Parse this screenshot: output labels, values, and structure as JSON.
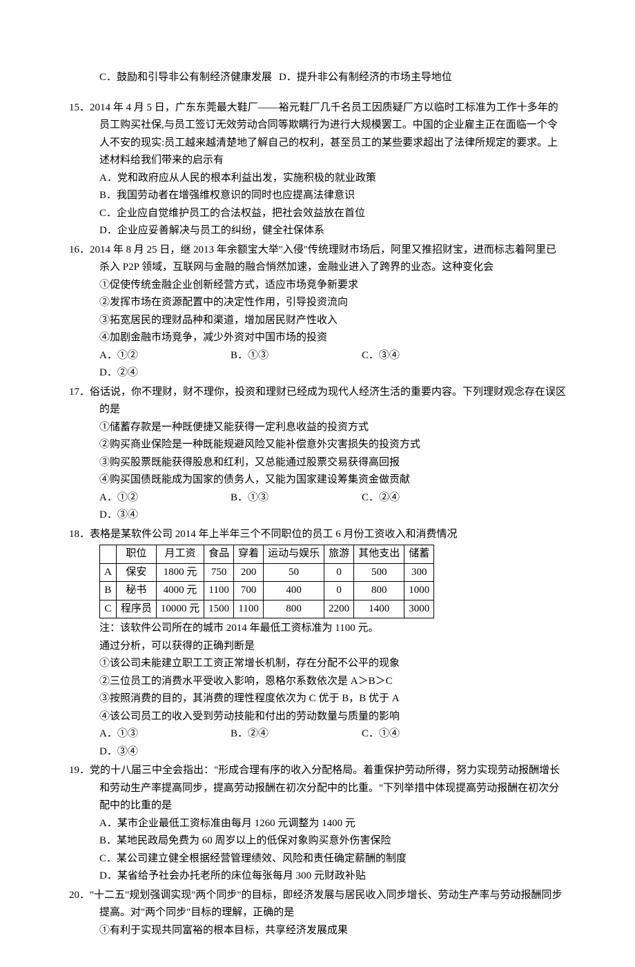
{
  "q14opts": {
    "c": "C．鼓励和引导非公有制经济健康发展",
    "d": "D．提升非公有制经济的市场主导地位"
  },
  "q15": {
    "stem": "15．2014 年 4 月 5 日，广东东莞最大鞋厂——裕元鞋厂几千名员工因质疑厂方以临时工标准为工作十多年的员工购买社保,与员工签订无效劳动合同等欺瞒行为进行大规模罢工。中国的企业雇主正在面临一个令人不安的现实:员工越来越清楚地了解自己的权利，甚至员工的某些要求超出了法律所规定的要求。上述材料给我们带来的启示有",
    "a": "A．党和政府应从人民的根本利益出发，实施积极的就业政策",
    "b": "B．我国劳动者在增强维权意识的同时也应提高法律意识",
    "c": "C．企业应自觉维护员工的合法权益，把社会效益放在首位",
    "d": "D．企业应妥善解决与员工的纠纷，健全社保体系"
  },
  "q16": {
    "stem": "16．2014 年 8 月 25 日，继 2013 年余额宝大举\"入侵\"传统理财市场后，阿里又推招财宝，进而标志着阿里已杀入 P2P 领域，互联网与金融的融合悄然加速，金融业进入了跨界的业态。这种变化会",
    "s1": "①促使传统金融企业创新经营方式，适应市场竞争新要求",
    "s2": "②发挥市场在资源配置中的决定性作用，引导投资流向",
    "s3": "③拓宽居民的理财品种和渠道，增加居民财产性收入",
    "s4": "④加剧金融市场竞争，减少外资对中国市场的投资",
    "a": "A．①②",
    "b": "B．①③",
    "c": "C．③④",
    "d": "D．②④"
  },
  "q17": {
    "stem": "17．俗话说，你不理财，财不理你，投资和理财已经成为现代人经济生活的重要内容。下列理财观念存在误区的是",
    "s1": "①储蓄存款是一种既便捷又能获得一定利息收益的投资方式",
    "s2": "②购买商业保险是一种既能规避风险又能补偿意外灾害损失的投资方式",
    "s3": "③购买股票既能获得股息和红利，又总能通过股票交易获得高回报",
    "s4": "④购买国债既能成为国家的债务人，又能为国家建设筹集资金做贡献",
    "a": "A．①②",
    "b": "B．①③",
    "c": "C．②④",
    "d": "D．③④"
  },
  "q18": {
    "stem": "18．表格是某软件公司 2014 年上半年三个不同职位的员工 6 月份工资收入和消费情况",
    "table": {
      "headers": [
        "",
        "职位",
        "月工资",
        "食品",
        "穿着",
        "运动与娱乐",
        "旅游",
        "其他支出",
        "储蓄"
      ],
      "rows": [
        [
          "A",
          "保安",
          "1800 元",
          "750",
          "200",
          "50",
          "0",
          "500",
          "300"
        ],
        [
          "B",
          "秘书",
          "4000 元",
          "1100",
          "700",
          "400",
          "0",
          "800",
          "1000"
        ],
        [
          "C",
          "程序员",
          "10000 元",
          "1500",
          "1100",
          "800",
          "2200",
          "1400",
          "3000"
        ]
      ]
    },
    "note": "注：该软件公司所在的城市 2014 年最低工资标准为 1100 元。",
    "lead": "通过分析，可以获得的正确判断是",
    "s1": "①该公司未能建立职工工资正常增长机制，存在分配不公平的现象",
    "s2": "②三位员工的消费水平受收入影响，恩格尔系数依次是 A＞B＞C",
    "s3": "③按照消费的目的，其消费的理性程度依次为 C 优于 B，B 优于 A",
    "s4": "④该公司员工的收入受到劳动技能和付出的劳动数量与质量的影响",
    "a": "A．①③",
    "b": "B．②④",
    "c": "C．①④",
    "d": "D．③④"
  },
  "q19": {
    "stem": "19．党的十八届三中全会指出：\"形成合理有序的收入分配格局。着重保护劳动所得，努力实现劳动报酬增长和劳动生产率提高同步，提高劳动报酬在初次分配中的比重。\"下列举措中体现提高劳动报酬在初次分配中的比重的是",
    "a": "A．某市企业最低工资标准由每月 1260 元调整为 1400 元",
    "b": "B．某地民政局免费为 60 周岁以上的低保对象购买意外伤害保险",
    "c": "C．某公司建立健全根据经营管理绩效、风险和责任确定薪酬的制度",
    "d": "D．某省给予社会办托老所的床位每张每月 300 元财政补贴"
  },
  "q20": {
    "stem": "20．\"十二五\"规划强调实现\"两个同步\"的目标，即经济发展与居民收入同步增长、劳动生产率与劳动报酬同步提高。对\"两个同步\"目标的理解，正确的是",
    "s1": "①有利于实现共同富裕的根本目标，共享经济发展成果"
  }
}
